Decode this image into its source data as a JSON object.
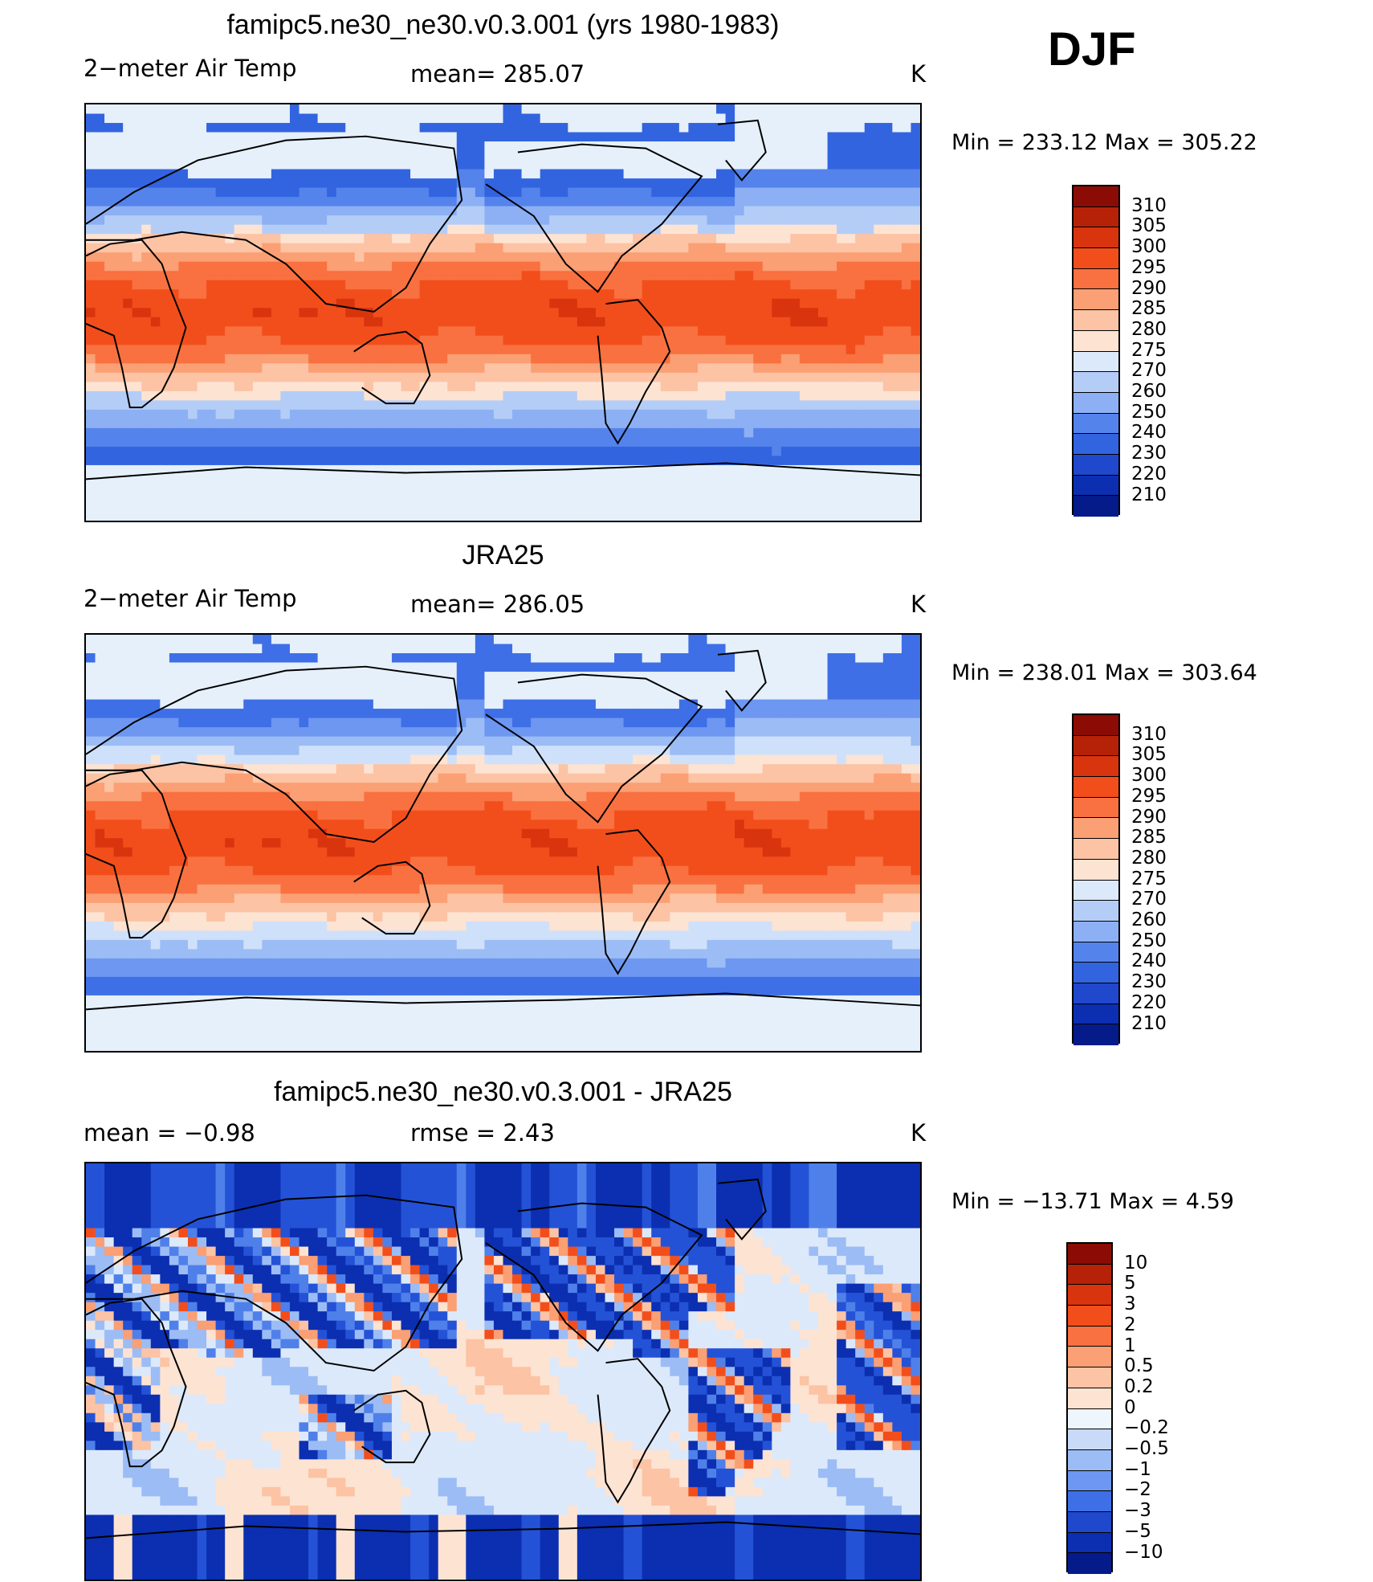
{
  "season": "DJF",
  "panels": [
    {
      "title": "famipc5.ne30_ne30.v0.3.001 (yrs 1980-1983)",
      "left_label": "2−meter Air Temp",
      "center_label": "mean=  285.07",
      "right_label": "K",
      "minmax": "Min  =  233.12  Max  =  305.22",
      "palette": [
        "#e6f0fb",
        "#3264e0",
        "#5583ec",
        "#8cb0f3",
        "#b4cdf7",
        "#fde3d2",
        "#fcc3a4",
        "#fb9f74",
        "#f97140",
        "#f24e1c",
        "#d8340e"
      ],
      "colorbar": {
        "labels": [
          "310",
          "305",
          "300",
          "295",
          "290",
          "285",
          "280",
          "275",
          "270",
          "260",
          "250",
          "240",
          "230",
          "220",
          "210"
        ],
        "colors": [
          "#8b0c04",
          "#b52208",
          "#d8340e",
          "#f24e1c",
          "#f97140",
          "#fb9f74",
          "#fcc3a4",
          "#fde3d2",
          "#dce9fa",
          "#b4cdf7",
          "#8cb0f3",
          "#5583ec",
          "#3264e0",
          "#1f48cc",
          "#0b2fb0",
          "#051b8a"
        ]
      }
    },
    {
      "title": "JRA25",
      "left_label": "2−meter Air Temp",
      "center_label": "mean=  286.05",
      "right_label": "K",
      "minmax": "Min  =  238.01  Max  =  303.64",
      "palette": [
        "#e6f0fb",
        "#3e6fe6",
        "#6d97f0",
        "#9cbcf5",
        "#cfe1fa",
        "#fde3d2",
        "#fcc3a4",
        "#fb9f74",
        "#f97140",
        "#f24e1c",
        "#d8340e"
      ],
      "colorbar": {
        "labels": [
          "310",
          "305",
          "300",
          "295",
          "290",
          "285",
          "280",
          "275",
          "270",
          "260",
          "250",
          "240",
          "230",
          "220",
          "210"
        ],
        "colors": [
          "#8b0c04",
          "#b52208",
          "#d8340e",
          "#f24e1c",
          "#f97140",
          "#fb9f74",
          "#fcc3a4",
          "#fde3d2",
          "#dce9fa",
          "#b4cdf7",
          "#8cb0f3",
          "#5583ec",
          "#3264e0",
          "#1f48cc",
          "#0b2fb0",
          "#051b8a"
        ]
      }
    },
    {
      "title": "famipc5.ne30_ne30.v0.3.001 - JRA25",
      "left_label": "mean  =    −0.98",
      "center_label": "rmse  =     2.43",
      "right_label": "K",
      "minmax": "Min  =  −13.71  Max  =       4.59",
      "palette": [
        "#fde3d2",
        "#0b2fb0",
        "#2452d6",
        "#4f80ea",
        "#9cbcf5",
        "#dce9fa",
        "#fde3d2",
        "#fcc3a4",
        "#fb9f74",
        "#f24e1c",
        "#d8340e"
      ],
      "colorbar": {
        "labels": [
          "10",
          "5",
          "3",
          "2",
          "1",
          "0.5",
          "0.2",
          "0",
          "−0.2",
          "−0.5",
          "−1",
          "−2",
          "−3",
          "−5",
          "−10"
        ],
        "colors": [
          "#8b0c04",
          "#b52208",
          "#d8340e",
          "#f24e1c",
          "#f97140",
          "#fb9f74",
          "#fcc3a4",
          "#fde3d2",
          "#eef5fd",
          "#c8daf8",
          "#9cbcf5",
          "#6d97f0",
          "#3e6fe6",
          "#1f48cc",
          "#0b2fb0",
          "#051b8a"
        ]
      }
    }
  ]
}
